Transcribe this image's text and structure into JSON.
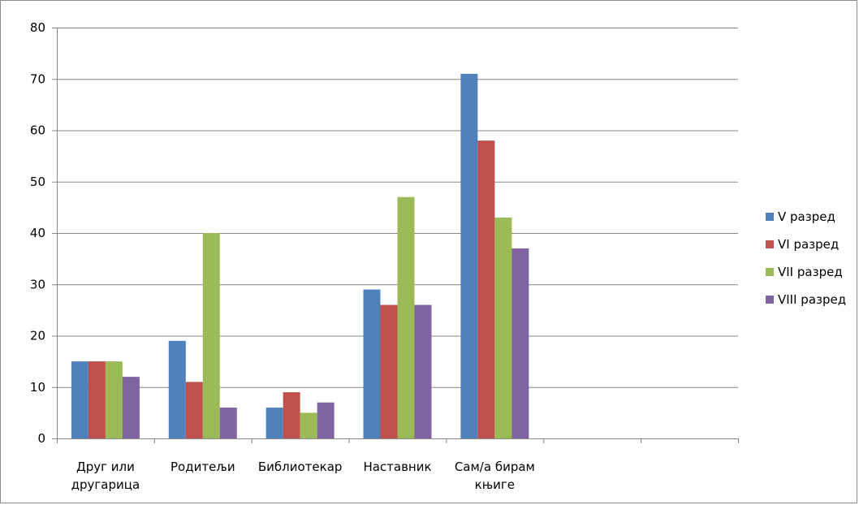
{
  "chart_data": {
    "type": "bar",
    "categories": [
      [
        "Друг или",
        "другарица"
      ],
      [
        "Родитељи"
      ],
      [
        "Библиотекар"
      ],
      [
        "Наставник"
      ],
      [
        "Сам/а бирам",
        "књиге"
      ],
      [
        ""
      ],
      [
        ""
      ]
    ],
    "series": [
      {
        "name": "V разред",
        "color": "#4f81bd",
        "values": [
          15,
          19,
          6,
          29,
          71,
          null,
          null
        ]
      },
      {
        "name": "VI разред",
        "color": "#c0504d",
        "values": [
          15,
          11,
          9,
          26,
          58,
          null,
          null
        ]
      },
      {
        "name": "VII разред",
        "color": "#9bbb59",
        "values": [
          15,
          40,
          5,
          47,
          43,
          null,
          null
        ]
      },
      {
        "name": "VIII разред",
        "color": "#8064a2",
        "values": [
          12,
          6,
          7,
          26,
          37,
          null,
          null
        ]
      }
    ],
    "ylim": [
      0,
      80
    ],
    "yticks": [
      0,
      10,
      20,
      30,
      40,
      50,
      60,
      70,
      80
    ],
    "grid": true,
    "legend_position": "right"
  }
}
